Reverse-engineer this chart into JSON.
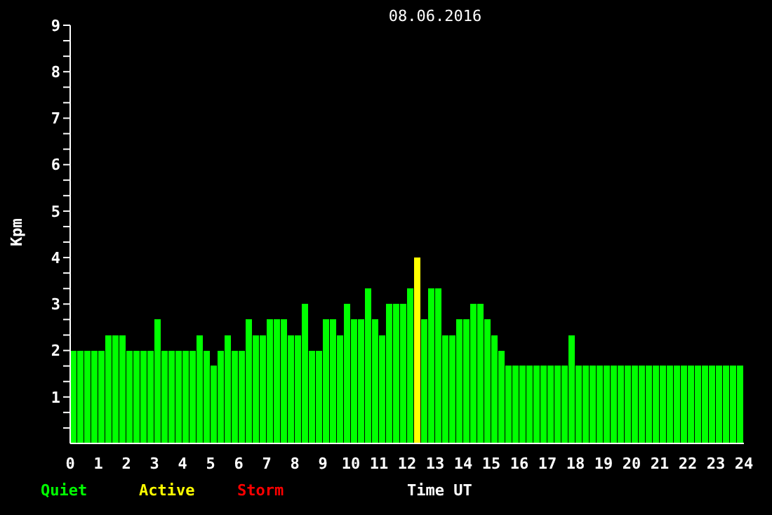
{
  "chart_data": {
    "type": "bar",
    "title": "08.06.2016",
    "xlabel": "Time UT",
    "ylabel": "Kpm",
    "stacked": true,
    "legend": "bottom left",
    "grid": false,
    "x": [
      0.125,
      0.375,
      0.625,
      0.875,
      1.125,
      1.375,
      1.625,
      1.875,
      2.125,
      2.375,
      2.625,
      2.875,
      3.125,
      3.375,
      3.625,
      3.875,
      4.125,
      4.375,
      4.625,
      4.875,
      5.125,
      5.375,
      5.625,
      5.875,
      6.125,
      6.375,
      6.625,
      6.875,
      7.125,
      7.375,
      7.625,
      7.875,
      8.125,
      8.375,
      8.625,
      8.875,
      9.125,
      9.375,
      9.625,
      9.875,
      10.125,
      10.375,
      10.625,
      10.875,
      11.125,
      11.375,
      11.625,
      11.875,
      12.125,
      12.375,
      12.625,
      12.875,
      13.125,
      13.375,
      13.625,
      13.875,
      14.125,
      14.375,
      14.625,
      14.875,
      15.125,
      15.375,
      15.625,
      15.875,
      16.125,
      16.375,
      16.625,
      16.875,
      17.125,
      17.375,
      17.625,
      17.875,
      18.125,
      18.375,
      18.625,
      18.875,
      19.125,
      19.375,
      19.625,
      19.875,
      20.125,
      20.375,
      20.625,
      20.875,
      21.125,
      21.375,
      21.625,
      21.875,
      22.125,
      22.375,
      22.625,
      22.875,
      23.125,
      23.375,
      23.625,
      23.875
    ],
    "series": [
      {
        "name": "Quiet",
        "color": "#00ff00",
        "values": [
          2,
          2,
          2,
          2,
          2,
          2.33,
          2.33,
          2.33,
          2,
          2,
          2,
          2,
          2.67,
          2,
          2,
          2,
          2,
          2,
          2.33,
          2,
          1.67,
          2,
          2.33,
          2,
          2,
          2.67,
          2.33,
          2.33,
          2.67,
          2.67,
          2.67,
          2.33,
          2.33,
          3,
          2,
          2,
          2.67,
          2.67,
          2.33,
          3,
          2.67,
          2.67,
          3.33,
          2.67,
          2.33,
          3,
          3,
          3,
          3.33,
          null,
          2.67,
          3.33,
          3.33,
          2.33,
          2.33,
          2.67,
          2.67,
          3,
          3,
          2.67,
          2.33,
          2,
          1.67,
          1.67,
          1.67,
          1.67,
          1.67,
          1.67,
          1.67,
          1.67,
          1.67,
          2.33,
          1.67,
          1.67,
          1.67,
          1.67,
          1.67,
          1.67,
          1.67,
          1.67,
          1.67,
          1.67,
          1.67,
          1.67,
          1.67,
          1.67,
          1.67,
          1.67,
          1.67,
          1.67,
          1.67,
          1.67,
          1.67,
          1.67,
          1.67,
          1.67
        ]
      },
      {
        "name": "Active",
        "color": "#ffff00",
        "values": [
          null,
          null,
          null,
          null,
          null,
          null,
          null,
          null,
          null,
          null,
          null,
          null,
          null,
          null,
          null,
          null,
          null,
          null,
          null,
          null,
          null,
          null,
          null,
          null,
          null,
          null,
          null,
          null,
          null,
          null,
          null,
          null,
          null,
          null,
          null,
          null,
          null,
          null,
          null,
          null,
          null,
          null,
          null,
          null,
          null,
          null,
          null,
          null,
          null,
          4,
          null,
          null,
          null,
          null,
          null,
          null,
          null,
          null,
          null,
          null,
          null,
          null,
          null,
          null,
          null,
          null,
          null,
          null,
          null,
          null,
          null,
          null,
          null,
          null,
          null,
          null,
          null,
          null,
          null,
          null,
          null,
          null,
          null,
          null,
          null,
          null,
          null,
          null,
          null,
          null,
          null,
          null,
          null,
          null,
          null,
          null
        ]
      },
      {
        "name": "Storm",
        "color": "#ff0000",
        "values": [
          null,
          null,
          null,
          null,
          null,
          null,
          null,
          null,
          null,
          null,
          null,
          null,
          null,
          null,
          null,
          null,
          null,
          null,
          null,
          null,
          null,
          null,
          null,
          null,
          null,
          null,
          null,
          null,
          null,
          null,
          null,
          null,
          null,
          null,
          null,
          null,
          null,
          null,
          null,
          null,
          null,
          null,
          null,
          null,
          null,
          null,
          null,
          null,
          null,
          null,
          null,
          null,
          null,
          null,
          null,
          null,
          null,
          null,
          null,
          null,
          null,
          null,
          null,
          null,
          null,
          null,
          null,
          null,
          null,
          null,
          null,
          null,
          null,
          null,
          null,
          null,
          null,
          null,
          null,
          null,
          null,
          null,
          null,
          null,
          null,
          null,
          null,
          null,
          null,
          null,
          null,
          null,
          null,
          null,
          null,
          null
        ]
      }
    ],
    "xlim": [
      0,
      24
    ],
    "xticks": [
      0,
      1,
      2,
      3,
      4,
      5,
      6,
      7,
      8,
      9,
      10,
      11,
      12,
      13,
      14,
      15,
      16,
      17,
      18,
      19,
      20,
      21,
      22,
      23,
      24
    ],
    "ylim": [
      0,
      9
    ],
    "yticks": [
      {
        "value": 0.333,
        "label": null
      },
      {
        "value": 0.667,
        "label": null
      },
      1,
      {
        "value": 1.333,
        "label": null
      },
      {
        "value": 1.667,
        "label": null
      },
      2,
      {
        "value": 2.333,
        "label": null
      },
      {
        "value": 2.667,
        "label": null
      },
      3,
      {
        "value": 3.333,
        "label": null
      },
      {
        "value": 3.667,
        "label": null
      },
      4,
      {
        "value": 4.333,
        "label": null
      },
      {
        "value": 4.667,
        "label": null
      },
      5,
      {
        "value": 5.333,
        "label": null
      },
      {
        "value": 5.667,
        "label": null
      },
      6,
      {
        "value": 6.333,
        "label": null
      },
      {
        "value": 6.667,
        "label": null
      },
      7,
      {
        "value": 7.333,
        "label": null
      },
      {
        "value": 7.667,
        "label": null
      },
      8,
      {
        "value": 8.333,
        "label": null
      },
      {
        "value": 8.667,
        "label": null
      },
      9
    ]
  }
}
